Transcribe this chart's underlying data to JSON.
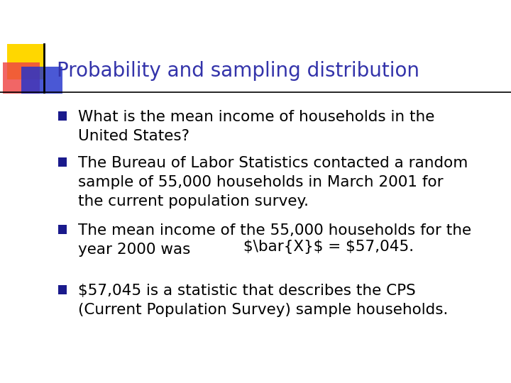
{
  "title": "Probability and sampling distribution",
  "title_color": "#3333AA",
  "title_fontsize": 20,
  "background_color": "#FFFFFF",
  "text_color": "#000000",
  "bullet_fontsize": 15.5,
  "bullets": [
    "What is the mean income of households in the\nUnited States?",
    "The Bureau of Labor Statistics contacted a random\nsample of 55,000 households in March 2001 for\nthe current population survey.",
    "The mean income of the 55,000 households for the\nyear 2000 was",
    "$57,045 is a statistic that describes the CPS\n(Current Population Survey) sample households."
  ],
  "logo_yellow": "#FFD700",
  "logo_red": "#EE4444",
  "logo_blue": "#2233CC",
  "bullet_blue": "#1a1a8c"
}
